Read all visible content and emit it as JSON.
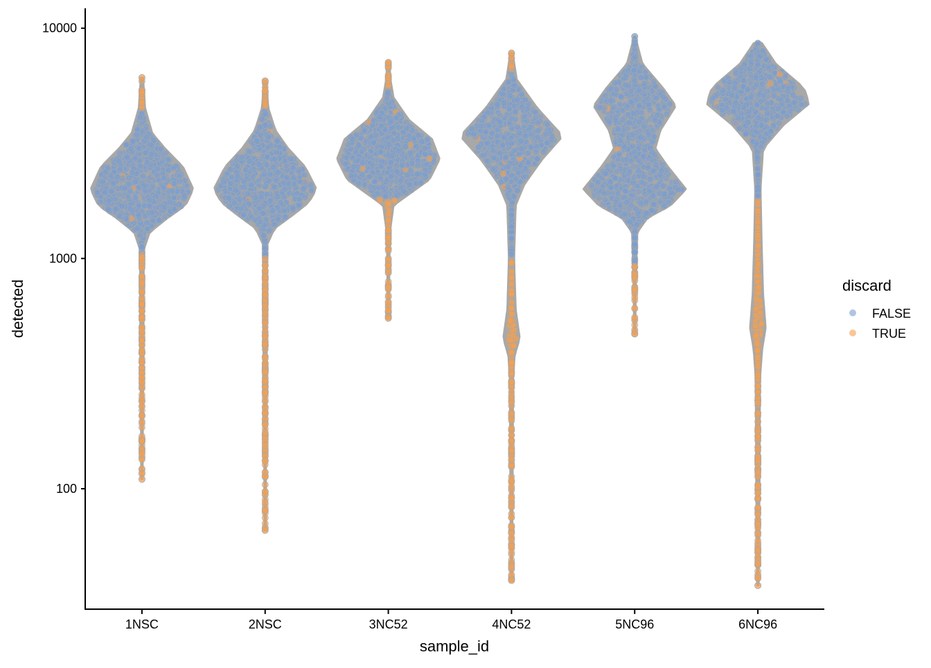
{
  "chart_data": {
    "type": "violin-beeswarm",
    "xlabel": "sample_id",
    "ylabel": "detected",
    "yscale": "log10",
    "ylim": [
      30,
      12200
    ],
    "yticks": [
      100,
      1000,
      10000
    ],
    "ytick_labels": [
      "100",
      "1000",
      "10000"
    ],
    "categories": [
      "1NSC",
      "2NSC",
      "3NC52",
      "4NC52",
      "5NC96",
      "6NC96"
    ],
    "grid": false,
    "legend": {
      "title": "discard",
      "position": "right",
      "entries": [
        {
          "label": "FALSE",
          "color": "#7a9fd0"
        },
        {
          "label": "TRUE",
          "color": "#f5a050"
        }
      ]
    },
    "violin_outline_color": "#a8a8a8",
    "samples": [
      {
        "id": "1NSC",
        "min": 110,
        "max": 6100,
        "true_below": 1050,
        "true_above": 4500,
        "density": [
          [
            110,
            0.01
          ],
          [
            250,
            0.02
          ],
          [
            400,
            0.03
          ],
          [
            800,
            0.03
          ],
          [
            1100,
            0.04
          ],
          [
            1300,
            0.15
          ],
          [
            1500,
            0.5
          ],
          [
            1700,
            0.85
          ],
          [
            2000,
            1.0
          ],
          [
            2500,
            0.8
          ],
          [
            3000,
            0.45
          ],
          [
            3500,
            0.2
          ],
          [
            4500,
            0.06
          ],
          [
            6100,
            0.02
          ]
        ]
      },
      {
        "id": "2NSC",
        "min": 66,
        "max": 5900,
        "true_below": 1000,
        "true_above": 4500,
        "density": [
          [
            66,
            0.01
          ],
          [
            250,
            0.02
          ],
          [
            400,
            0.03
          ],
          [
            800,
            0.03
          ],
          [
            1150,
            0.04
          ],
          [
            1350,
            0.18
          ],
          [
            1550,
            0.55
          ],
          [
            1750,
            0.85
          ],
          [
            2000,
            1.0
          ],
          [
            2500,
            0.78
          ],
          [
            3000,
            0.45
          ],
          [
            3600,
            0.2
          ],
          [
            4500,
            0.06
          ],
          [
            5900,
            0.02
          ]
        ]
      },
      {
        "id": "3NC52",
        "min": 550,
        "max": 7100,
        "true_below": 1800,
        "true_above": 5500,
        "density": [
          [
            550,
            0.01
          ],
          [
            1000,
            0.02
          ],
          [
            1300,
            0.03
          ],
          [
            1700,
            0.1
          ],
          [
            1900,
            0.4
          ],
          [
            2200,
            0.8
          ],
          [
            2700,
            1.0
          ],
          [
            3300,
            0.85
          ],
          [
            4000,
            0.4
          ],
          [
            5000,
            0.1
          ],
          [
            6000,
            0.04
          ],
          [
            7100,
            0.02
          ]
        ]
      },
      {
        "id": "4NC52",
        "min": 40,
        "max": 7800,
        "true_below": 1000,
        "true_above": 6500,
        "density": [
          [
            40,
            0.01
          ],
          [
            100,
            0.02
          ],
          [
            300,
            0.03
          ],
          [
            380,
            0.06
          ],
          [
            450,
            0.16
          ],
          [
            600,
            0.08
          ],
          [
            1000,
            0.05
          ],
          [
            1700,
            0.08
          ],
          [
            2100,
            0.25
          ],
          [
            2700,
            0.6
          ],
          [
            3400,
            1.0
          ],
          [
            4500,
            0.5
          ],
          [
            6000,
            0.1
          ],
          [
            7800,
            0.02
          ]
        ]
      },
      {
        "id": "5NC96",
        "min": 470,
        "max": 9200,
        "true_below": 950,
        "true_above": 99999,
        "density": [
          [
            470,
            0.01
          ],
          [
            800,
            0.02
          ],
          [
            1300,
            0.05
          ],
          [
            1500,
            0.25
          ],
          [
            1700,
            0.7
          ],
          [
            2000,
            1.0
          ],
          [
            2500,
            0.65
          ],
          [
            3000,
            0.4
          ],
          [
            3600,
            0.5
          ],
          [
            4600,
            0.8
          ],
          [
            5500,
            0.55
          ],
          [
            7000,
            0.15
          ],
          [
            9200,
            0.01
          ]
        ]
      },
      {
        "id": "6NC96",
        "min": 38,
        "max": 8600,
        "true_below": 1800,
        "true_above": 99999,
        "density": [
          [
            38,
            0.01
          ],
          [
            100,
            0.03
          ],
          [
            300,
            0.04
          ],
          [
            400,
            0.08
          ],
          [
            500,
            0.15
          ],
          [
            700,
            0.1
          ],
          [
            1200,
            0.07
          ],
          [
            2000,
            0.05
          ],
          [
            3000,
            0.1
          ],
          [
            3800,
            0.5
          ],
          [
            4700,
            1.0
          ],
          [
            5500,
            0.9
          ],
          [
            7000,
            0.35
          ],
          [
            8600,
            0.08
          ]
        ]
      }
    ]
  }
}
